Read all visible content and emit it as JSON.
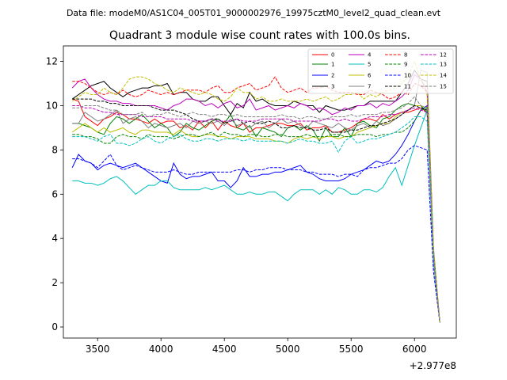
{
  "chart_data": {
    "type": "line",
    "suptitle": "Data file: modeM0/AS1C04_005T01_9000002976_19975cztM0_level2_quad_clean.evt",
    "title": "Quadrant 3 module wise count rates with 100.0s bins.",
    "xlabel": "",
    "ylabel": "",
    "x_offset_text": "+2.977e8",
    "xlim": [
      3230,
      6330
    ],
    "ylim": [
      -0.5,
      12.7
    ],
    "xticks": [
      3500,
      4000,
      4500,
      5000,
      5500,
      6000
    ],
    "yticks": [
      0,
      2,
      4,
      6,
      8,
      10,
      12
    ],
    "grid": false,
    "legend_position": "top-right",
    "x": [
      3300,
      3350,
      3400,
      3450,
      3500,
      3550,
      3600,
      3650,
      3700,
      3750,
      3800,
      3850,
      3900,
      3950,
      4000,
      4050,
      4100,
      4150,
      4200,
      4250,
      4300,
      4350,
      4400,
      4450,
      4500,
      4550,
      4600,
      4650,
      4700,
      4750,
      4800,
      4850,
      4900,
      4950,
      5000,
      5050,
      5100,
      5150,
      5200,
      5250,
      5300,
      5350,
      5400,
      5450,
      5500,
      5550,
      5600,
      5650,
      5700,
      5750,
      5800,
      5850,
      5900,
      5950,
      6000,
      6050,
      6100,
      6150,
      6200
    ],
    "series": [
      {
        "name": "0",
        "color": "#ff0000",
        "dash": false,
        "values": [
          10.3,
          10.2,
          9.5,
          9.3,
          9.1,
          9.4,
          9.5,
          9.7,
          9.6,
          9.4,
          9.4,
          9.3,
          9.2,
          9.4,
          9.2,
          9.3,
          9.3,
          9.0,
          9.1,
          8.9,
          9.3,
          9.0,
          9.3,
          8.9,
          9.3,
          9.1,
          9.0,
          9.2,
          8.8,
          9.0,
          9.0,
          9.1,
          9.2,
          9.2,
          9.1,
          9.1,
          9.2,
          8.9,
          9.0,
          9.0,
          9.1,
          8.8,
          8.8,
          8.9,
          9.0,
          9.2,
          9.4,
          9.4,
          9.3,
          9.6,
          9.4,
          9.6,
          9.7,
          9.7,
          9.8,
          9.9,
          9.7,
          3.0,
          0.2
        ]
      },
      {
        "name": "1",
        "color": "#008000",
        "dash": false,
        "values": [
          9.2,
          9.2,
          9.1,
          9.0,
          8.8,
          8.7,
          9.2,
          9.5,
          9.4,
          9.2,
          9.4,
          9.6,
          9.3,
          9.0,
          9.2,
          9.0,
          8.6,
          8.8,
          9.2,
          9.0,
          8.9,
          9.1,
          9.3,
          9.4,
          9.2,
          9.6,
          9.0,
          8.9,
          9.1,
          8.6,
          9.0,
          8.9,
          8.8,
          8.6,
          9.0,
          9.1,
          8.9,
          9.1,
          8.9,
          8.4,
          9.0,
          8.6,
          8.6,
          9.0,
          8.6,
          9.2,
          9.3,
          9.1,
          9.0,
          9.4,
          9.5,
          9.8,
          10.0,
          10.1,
          10.0,
          10.0,
          9.7,
          3.2,
          0.2
        ]
      },
      {
        "name": "2",
        "color": "#0000ff",
        "dash": false,
        "values": [
          7.2,
          7.8,
          7.5,
          7.4,
          7.1,
          7.3,
          7.4,
          7.3,
          7.2,
          7.3,
          7.4,
          7.2,
          7.0,
          6.8,
          6.6,
          6.5,
          7.4,
          6.9,
          6.7,
          6.8,
          6.8,
          6.9,
          7.0,
          6.6,
          6.6,
          6.3,
          6.6,
          7.2,
          6.8,
          6.8,
          6.9,
          6.9,
          7.0,
          7.0,
          7.1,
          7.2,
          7.3,
          7.0,
          6.9,
          6.7,
          6.6,
          6.6,
          6.6,
          6.7,
          6.9,
          7.0,
          7.1,
          7.3,
          7.5,
          7.4,
          7.5,
          7.8,
          8.2,
          8.7,
          9.3,
          9.8,
          10.0,
          3.1,
          0.2
        ]
      },
      {
        "name": "3",
        "color": "#000000",
        "dash": false,
        "values": [
          10.3,
          10.5,
          10.7,
          10.9,
          11.0,
          11.1,
          10.8,
          10.6,
          10.4,
          10.6,
          10.7,
          10.8,
          10.8,
          10.9,
          10.9,
          11.0,
          10.5,
          10.6,
          10.6,
          10.3,
          10.2,
          10.2,
          10.4,
          10.4,
          10.0,
          9.6,
          10.1,
          9.9,
          10.6,
          10.2,
          10.3,
          10.1,
          10.0,
          10.0,
          10.0,
          10.2,
          10.1,
          10.0,
          10.0,
          9.7,
          10.0,
          9.9,
          9.8,
          9.8,
          9.9,
          10.0,
          10.0,
          10.2,
          10.2,
          10.2,
          10.2,
          10.2,
          10.6,
          11.0,
          11.6,
          11.2,
          11.1,
          3.5,
          0.2
        ]
      },
      {
        "name": "4",
        "color": "#bf00bf",
        "dash": false,
        "values": [
          10.8,
          11.1,
          11.2,
          10.8,
          10.5,
          10.3,
          10.2,
          10.2,
          10.1,
          10.1,
          10.0,
          10.0,
          10.0,
          10.0,
          9.9,
          9.8,
          10.0,
          10.1,
          10.3,
          10.3,
          10.2,
          10.0,
          10.1,
          9.9,
          10.1,
          10.2,
          9.9,
          10.0,
          10.3,
          9.8,
          9.9,
          10.0,
          9.8,
          9.9,
          10.0,
          9.9,
          10.1,
          10.0,
          9.8,
          9.9,
          9.8,
          9.6,
          9.7,
          9.9,
          9.8,
          10.0,
          10.0,
          10.1,
          9.9,
          10.1,
          10.0,
          10.2,
          10.4,
          10.7,
          11.4,
          11.2,
          10.6,
          3.4,
          0.2
        ]
      },
      {
        "name": "5",
        "color": "#00bfbf",
        "dash": false,
        "values": [
          6.6,
          6.6,
          6.5,
          6.5,
          6.4,
          6.5,
          6.7,
          6.8,
          6.6,
          6.3,
          6.0,
          6.2,
          6.4,
          6.4,
          6.6,
          6.6,
          6.3,
          6.2,
          6.2,
          6.2,
          6.2,
          6.3,
          6.2,
          6.3,
          6.4,
          6.2,
          6.0,
          6.0,
          6.1,
          6.0,
          6.0,
          6.1,
          6.1,
          5.9,
          5.7,
          6.0,
          6.2,
          6.2,
          6.2,
          6.0,
          6.2,
          6.0,
          6.3,
          6.2,
          6.0,
          6.0,
          6.2,
          6.2,
          6.1,
          6.3,
          6.8,
          7.2,
          6.4,
          7.3,
          8.2,
          9.0,
          9.8,
          3.0,
          0.2
        ]
      },
      {
        "name": "6",
        "color": "#bfbf00",
        "dash": false,
        "values": [
          8.8,
          9.0,
          9.2,
          9.0,
          8.8,
          9.0,
          8.8,
          8.9,
          9.0,
          8.8,
          8.7,
          8.9,
          8.9,
          8.8,
          8.8,
          8.8,
          8.7,
          8.9,
          8.7,
          8.6,
          8.6,
          8.7,
          8.7,
          8.6,
          8.6,
          8.5,
          8.6,
          8.6,
          8.6,
          8.5,
          8.5,
          8.5,
          8.4,
          8.4,
          8.3,
          8.5,
          8.6,
          8.5,
          8.6,
          8.5,
          8.6,
          8.6,
          8.5,
          8.6,
          8.6,
          8.8,
          8.9,
          9.0,
          9.1,
          9.2,
          9.2,
          9.5,
          9.7,
          9.8,
          10.0,
          10.0,
          9.9,
          3.3,
          0.2
        ]
      },
      {
        "name": "7",
        "color": "#808080",
        "dash": false,
        "values": [
          9.2,
          9.2,
          9.7,
          9.5,
          9.3,
          9.4,
          9.6,
          9.8,
          9.2,
          9.4,
          9.5,
          9.3,
          9.0,
          9.2,
          9.1,
          9.0,
          9.1,
          9.2,
          9.0,
          9.3,
          9.2,
          9.3,
          9.2,
          9.3,
          9.1,
          9.4,
          9.1,
          9.2,
          9.0,
          9.2,
          9.3,
          9.0,
          9.2,
          9.4,
          9.2,
          9.3,
          9.1,
          9.0,
          9.3,
          9.2,
          9.1,
          9.0,
          9.2,
          9.0,
          8.9,
          9.1,
          9.2,
          9.0,
          9.3,
          9.1,
          9.2,
          9.4,
          9.6,
          9.8,
          10.0,
          11.6,
          11.5,
          3.6,
          0.2
        ]
      },
      {
        "name": "8",
        "color": "#ff0000",
        "dash": true,
        "values": [
          11.1,
          11.1,
          11.0,
          10.8,
          10.6,
          10.5,
          10.6,
          10.5,
          10.7,
          10.5,
          10.4,
          10.5,
          10.7,
          10.6,
          10.5,
          10.6,
          10.5,
          10.6,
          10.7,
          10.7,
          10.7,
          10.6,
          10.8,
          10.9,
          10.6,
          10.6,
          10.8,
          10.9,
          11.0,
          10.7,
          10.8,
          10.9,
          11.3,
          10.8,
          10.6,
          10.7,
          10.8,
          10.6,
          10.8,
          10.8,
          10.9,
          10.7,
          10.6,
          10.6,
          10.6,
          10.5,
          10.5,
          10.7,
          10.6,
          10.5,
          10.3,
          10.4,
          10.6,
          10.5,
          11.0,
          10.9,
          10.6,
          3.4,
          0.2
        ]
      },
      {
        "name": "9",
        "color": "#008000",
        "dash": true,
        "values": [
          8.7,
          8.7,
          8.6,
          8.6,
          8.5,
          8.3,
          8.3,
          8.6,
          8.7,
          8.6,
          8.6,
          8.5,
          8.7,
          8.6,
          8.6,
          8.6,
          8.5,
          8.6,
          8.7,
          8.7,
          8.6,
          8.7,
          8.8,
          8.6,
          8.8,
          8.7,
          8.7,
          8.6,
          8.7,
          8.7,
          8.6,
          8.6,
          8.7,
          8.7,
          8.6,
          8.6,
          8.6,
          8.7,
          8.6,
          8.6,
          8.6,
          8.7,
          8.7,
          8.6,
          8.6,
          8.7,
          8.7,
          8.7,
          8.6,
          8.7,
          8.7,
          8.8,
          8.8,
          9.0,
          9.3,
          9.8,
          9.9,
          3.2,
          0.2
        ]
      },
      {
        "name": "10",
        "color": "#0000ff",
        "dash": true,
        "values": [
          7.6,
          7.6,
          7.5,
          7.4,
          7.2,
          7.5,
          7.8,
          7.3,
          7.1,
          7.2,
          7.3,
          7.2,
          7.1,
          7.0,
          7.0,
          7.0,
          7.1,
          7.0,
          6.9,
          6.9,
          7.0,
          7.0,
          7.0,
          7.0,
          7.0,
          7.0,
          7.1,
          7.1,
          7.0,
          7.1,
          7.1,
          7.2,
          7.2,
          7.2,
          7.1,
          7.1,
          7.1,
          7.0,
          7.0,
          6.9,
          6.9,
          6.9,
          6.8,
          6.9,
          6.9,
          6.8,
          7.1,
          7.2,
          7.2,
          7.3,
          7.4,
          7.4,
          7.6,
          8.0,
          8.2,
          8.1,
          8.0,
          2.5,
          0.2
        ]
      },
      {
        "name": "11",
        "color": "#000000",
        "dash": true,
        "values": [
          10.3,
          10.3,
          10.3,
          10.3,
          10.2,
          10.2,
          10.1,
          10.1,
          10.0,
          10.0,
          10.0,
          10.0,
          10.0,
          9.9,
          9.8,
          9.8,
          9.8,
          9.7,
          9.6,
          9.4,
          9.3,
          9.3,
          9.4,
          9.4,
          9.2,
          9.3,
          9.4,
          9.2,
          9.3,
          9.2,
          9.2,
          9.3,
          9.2,
          9.0,
          9.0,
          9.1,
          9.0,
          9.0,
          8.9,
          8.9,
          9.0,
          8.8,
          8.8,
          8.8,
          8.9,
          8.9,
          9.0,
          9.1,
          9.1,
          9.2,
          9.3,
          9.4,
          9.6,
          9.8,
          10.0,
          9.9,
          9.8,
          3.2,
          0.2
        ]
      },
      {
        "name": "12",
        "color": "#bf00bf",
        "dash": true,
        "values": [
          10.0,
          10.0,
          9.9,
          9.9,
          9.8,
          9.7,
          9.7,
          9.6,
          9.6,
          9.6,
          9.6,
          9.5,
          9.5,
          9.5,
          9.5,
          9.4,
          9.4,
          9.4,
          9.4,
          9.3,
          9.3,
          9.3,
          9.4,
          9.3,
          9.3,
          9.3,
          9.4,
          9.3,
          9.3,
          9.3,
          9.4,
          9.4,
          9.4,
          9.4,
          9.4,
          9.3,
          9.3,
          9.3,
          9.3,
          9.3,
          9.4,
          9.4,
          9.3,
          9.4,
          9.3,
          9.3,
          9.4,
          9.5,
          9.5,
          9.5,
          9.6,
          9.6,
          9.7,
          9.8,
          9.9,
          9.8,
          9.7,
          3.0,
          0.2
        ]
      },
      {
        "name": "13",
        "color": "#00bfbf",
        "dash": true,
        "values": [
          8.6,
          8.6,
          8.6,
          8.5,
          8.4,
          8.6,
          8.7,
          8.3,
          8.3,
          8.2,
          8.3,
          8.5,
          8.6,
          8.4,
          8.3,
          8.5,
          8.6,
          8.7,
          8.5,
          8.4,
          8.4,
          8.5,
          8.5,
          8.4,
          8.5,
          8.5,
          8.5,
          8.4,
          8.5,
          8.4,
          8.4,
          8.4,
          8.4,
          8.4,
          8.3,
          8.4,
          8.5,
          8.4,
          8.4,
          8.3,
          8.3,
          8.4,
          7.9,
          8.4,
          8.6,
          8.3,
          8.4,
          8.5,
          8.5,
          8.6,
          8.7,
          8.8,
          9.0,
          9.2,
          9.5,
          9.5,
          9.3,
          3.0,
          0.2
        ]
      },
      {
        "name": "14",
        "color": "#bfbf00",
        "dash": true,
        "values": [
          10.2,
          10.4,
          10.6,
          10.5,
          10.5,
          10.8,
          10.6,
          10.5,
          10.8,
          11.2,
          11.3,
          11.3,
          11.2,
          11.0,
          10.9,
          10.7,
          10.6,
          10.8,
          10.7,
          10.6,
          10.5,
          10.6,
          10.5,
          10.3,
          10.2,
          10.4,
          10.8,
          10.6,
          10.6,
          10.3,
          10.4,
          10.2,
          10.2,
          10.3,
          10.2,
          10.2,
          10.2,
          10.3,
          10.2,
          10.3,
          10.4,
          10.2,
          10.3,
          10.5,
          10.5,
          10.6,
          10.3,
          10.5,
          10.4,
          10.6,
          10.7,
          10.8,
          11.0,
          11.3,
          12.0,
          11.2,
          10.8,
          3.5,
          0.2
        ]
      },
      {
        "name": "15",
        "color": "#808080",
        "dash": true,
        "values": [
          9.9,
          9.9,
          10.0,
          10.0,
          10.0,
          9.9,
          9.8,
          9.8,
          9.6,
          9.6,
          9.6,
          9.7,
          9.5,
          9.6,
          9.6,
          9.7,
          9.6,
          9.5,
          9.6,
          9.7,
          9.6,
          9.6,
          9.5,
          9.6,
          9.6,
          9.5,
          9.6,
          9.5,
          9.5,
          9.5,
          9.5,
          9.5,
          9.5,
          9.6,
          9.5,
          9.5,
          9.4,
          9.5,
          9.5,
          9.4,
          9.4,
          9.5,
          9.5,
          9.5,
          9.6,
          9.5,
          9.6,
          9.6,
          9.6,
          9.7,
          9.7,
          9.8,
          9.9,
          10.1,
          10.4,
          10.0,
          9.9,
          3.2,
          0.2
        ]
      }
    ]
  }
}
